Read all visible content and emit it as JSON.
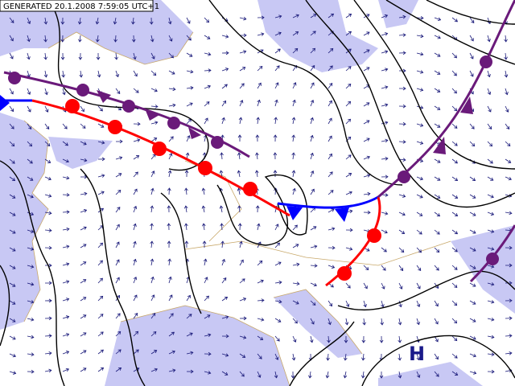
{
  "header": {
    "generated": "GENERATED 20.1.2008 7:59:05 UTC+1"
  },
  "labels": {
    "high": "H"
  }
}
